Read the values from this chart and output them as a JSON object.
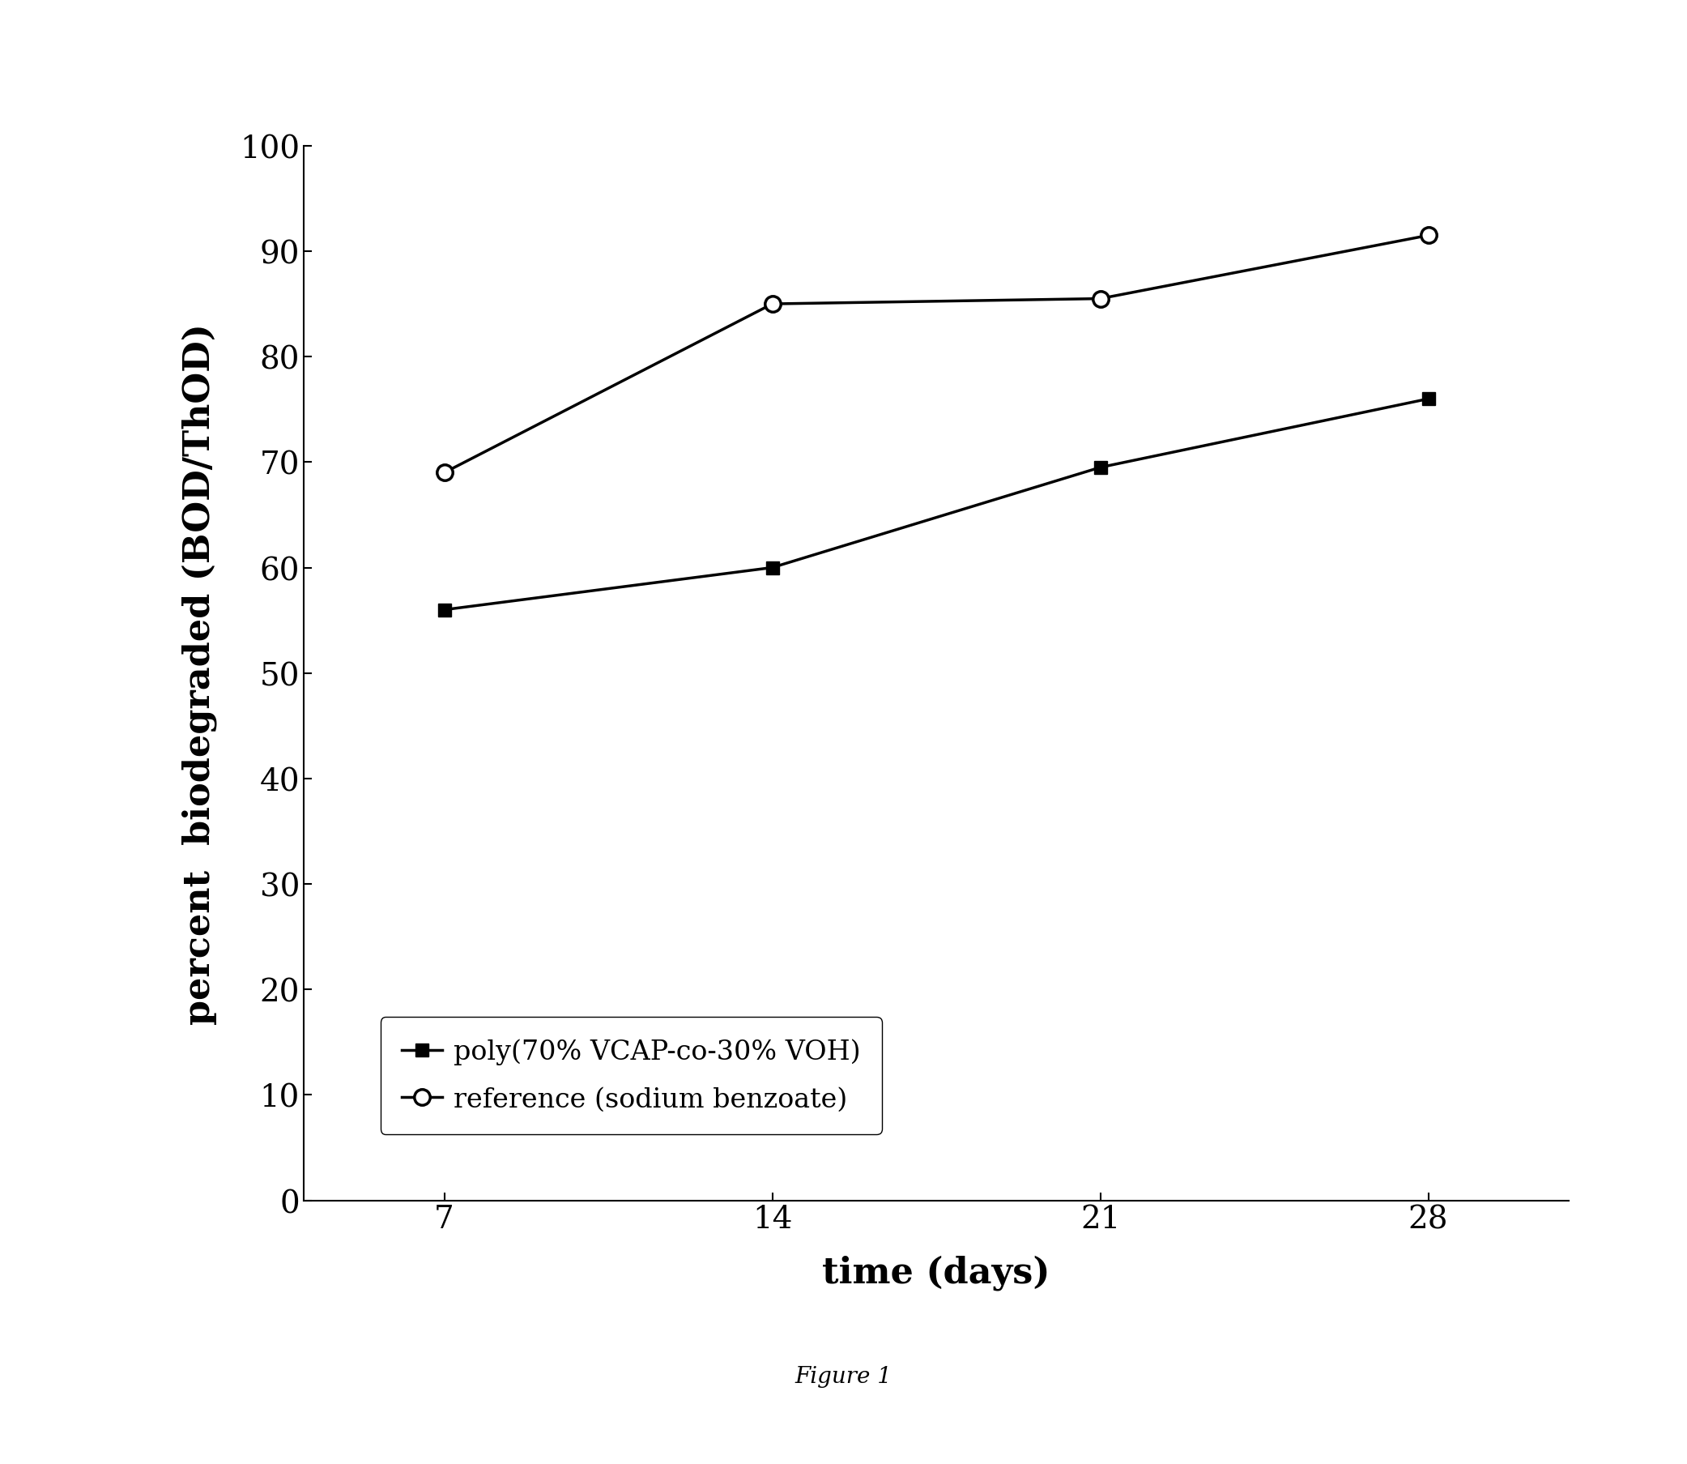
{
  "title": "Figure 1",
  "xlabel": "time (days)",
  "ylabel": "percent  biodegraded (BOD/ThOD)",
  "x_values": [
    7,
    14,
    21,
    28
  ],
  "series1_y": [
    56,
    60,
    69.5,
    76
  ],
  "series2_y": [
    69,
    85,
    85.5,
    91.5
  ],
  "series1_label": "poly(70% VCAP-co-30% VOH)",
  "series2_label": "reference (sodium benzoate)",
  "xlim": [
    4,
    31
  ],
  "ylim": [
    0,
    100
  ],
  "yticks": [
    0,
    10,
    20,
    30,
    40,
    50,
    60,
    70,
    80,
    90,
    100
  ],
  "xticks": [
    7,
    14,
    21,
    28
  ],
  "line_color": "#000000",
  "bg_color": "#ffffff",
  "fontsize_axis_label": 32,
  "fontsize_tick": 28,
  "fontsize_title": 20,
  "fontsize_legend": 24,
  "linewidth": 2.5,
  "marker_size_square": 12,
  "marker_size_circle": 14
}
